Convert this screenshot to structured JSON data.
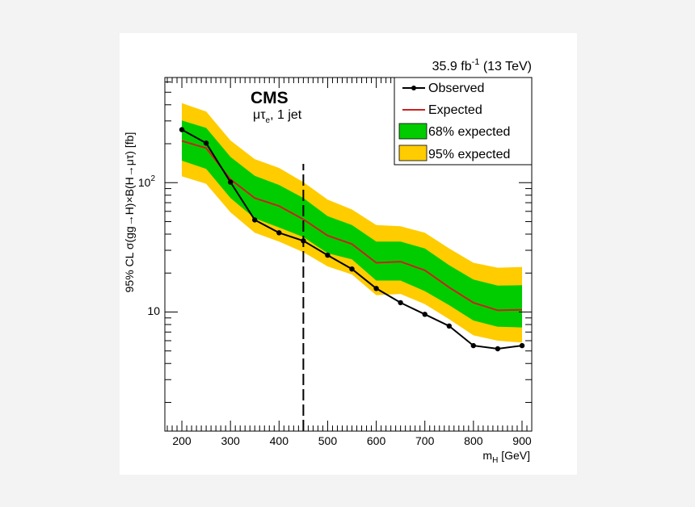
{
  "chart_data": {
    "type": "line",
    "x_axis": {
      "label_main": "m",
      "label_sub": "H",
      "label_unit": " [GeV]",
      "range": [
        165,
        920
      ],
      "ticks": [
        200,
        300,
        400,
        500,
        600,
        700,
        800,
        900
      ],
      "tick_labels": [
        "200",
        "300",
        "400",
        "500",
        "600",
        "700",
        "800",
        "900"
      ]
    },
    "y_axis": {
      "label": "95% CL σ(gg→H)×B(H→μτ) [fb]",
      "scale": "log",
      "range": [
        1.2,
        650
      ],
      "major_ticks": [
        10,
        100
      ],
      "tick_label_10": "10",
      "tick_label_100_base": "10",
      "tick_label_100_exp": "2"
    },
    "lumi_text": {
      "prefix": "35.9 fb",
      "exp": "-1",
      "suffix": " (13 TeV)"
    },
    "cms_label": "CMS",
    "channel_label": {
      "mu": "μτ",
      "sub": "e",
      "rest": ", 1 jet"
    },
    "divider_x": 450,
    "legend": {
      "observed": "Observed",
      "expected": "Expected",
      "band68": "68% expected",
      "band95": "95% expected"
    },
    "colors": {
      "observed": "#000000",
      "expected": "#cc2020",
      "band68": "#00cc00",
      "band95": "#ffcc00"
    },
    "mass": [
      200,
      250,
      300,
      350,
      400,
      450,
      500,
      550,
      600,
      650,
      700,
      750,
      800,
      850,
      900
    ],
    "observed": [
      257,
      202,
      101,
      51.5,
      41,
      35.5,
      27.5,
      21.5,
      15.2,
      11.8,
      9.6,
      7.8,
      5.5,
      5.2,
      5.5
    ],
    "expected": [
      210,
      185,
      106,
      76,
      66,
      52,
      39,
      33.5,
      24,
      24.5,
      21,
      15.5,
      11.8,
      10.3,
      10.4
    ],
    "band68_low": [
      148,
      128,
      76,
      53,
      45,
      38,
      28.5,
      25.5,
      17.5,
      17.5,
      14.5,
      11.3,
      8.6,
      7.7,
      7.6
    ],
    "band68_high": [
      302,
      265,
      158,
      113,
      96,
      76,
      55,
      47,
      35,
      35,
      31,
      23,
      17.8,
      16,
      16.1
    ],
    "band95_low": [
      112,
      98,
      59,
      41,
      35,
      29,
      22.5,
      19.5,
      13.5,
      13.8,
      11.5,
      8.8,
      6.6,
      6.0,
      5.8
    ],
    "band95_high": [
      412,
      355,
      212,
      152,
      130,
      101,
      74,
      62,
      47,
      46,
      41,
      31,
      24,
      22,
      22.3
    ]
  }
}
